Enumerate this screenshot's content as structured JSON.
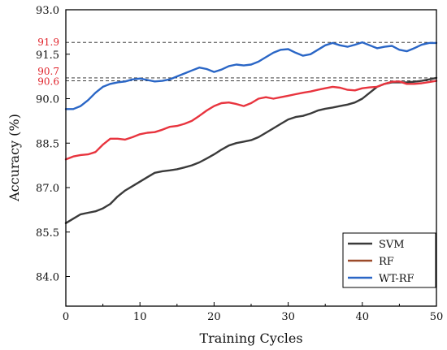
{
  "chart_data": {
    "type": "line",
    "xlabel": "Training Cycles",
    "ylabel": "Accuracy (%)",
    "xlim": [
      0,
      50
    ],
    "ylim": [
      83.0,
      93.0
    ],
    "x_ticks": [
      0,
      10,
      20,
      30,
      40,
      50
    ],
    "y_ticks": [
      "84.0",
      "85.5",
      "87.0",
      "88.5",
      "90.0",
      "91.5",
      "93.0"
    ],
    "reference_lines": [
      {
        "value": 91.9,
        "label": "91.9",
        "color": "#e0232b"
      },
      {
        "value": 90.7,
        "label": "90.7",
        "color": "#e0232b"
      },
      {
        "value": 90.6,
        "label": "90.6",
        "color": "#e0232b"
      }
    ],
    "legend_position": "bottom-right",
    "series": [
      {
        "name": "SVM",
        "color": "#3a3a3a",
        "x": [
          0,
          1,
          2,
          3,
          4,
          5,
          6,
          7,
          8,
          9,
          10,
          11,
          12,
          13,
          14,
          15,
          16,
          17,
          18,
          19,
          20,
          21,
          22,
          23,
          24,
          25,
          26,
          27,
          28,
          29,
          30,
          31,
          32,
          33,
          34,
          35,
          36,
          37,
          38,
          39,
          40,
          41,
          42,
          43,
          44,
          45,
          46,
          47,
          48,
          49,
          50
        ],
        "values": [
          85.8,
          85.95,
          86.1,
          86.15,
          86.2,
          86.3,
          86.45,
          86.7,
          86.9,
          87.05,
          87.2,
          87.35,
          87.5,
          87.55,
          87.58,
          87.62,
          87.68,
          87.75,
          87.85,
          87.98,
          88.12,
          88.28,
          88.42,
          88.5,
          88.55,
          88.6,
          88.7,
          88.85,
          89.0,
          89.15,
          89.3,
          89.38,
          89.42,
          89.5,
          89.6,
          89.66,
          89.7,
          89.75,
          89.8,
          89.87,
          90.0,
          90.2,
          90.4,
          90.5,
          90.55,
          90.55,
          90.55,
          90.57,
          90.6,
          90.65,
          90.7
        ]
      },
      {
        "name": "RF",
        "color": "#e8343e",
        "x": [
          0,
          1,
          2,
          3,
          4,
          5,
          6,
          7,
          8,
          9,
          10,
          11,
          12,
          13,
          14,
          15,
          16,
          17,
          18,
          19,
          20,
          21,
          22,
          23,
          24,
          25,
          26,
          27,
          28,
          29,
          30,
          31,
          32,
          33,
          34,
          35,
          36,
          37,
          38,
          39,
          40,
          41,
          42,
          43,
          44,
          45,
          46,
          47,
          48,
          49,
          50
        ],
        "values": [
          87.95,
          88.05,
          88.1,
          88.12,
          88.2,
          88.45,
          88.65,
          88.65,
          88.62,
          88.7,
          88.8,
          88.85,
          88.87,
          88.95,
          89.05,
          89.08,
          89.15,
          89.25,
          89.42,
          89.6,
          89.75,
          89.85,
          89.87,
          89.82,
          89.75,
          89.85,
          90.0,
          90.05,
          90.0,
          90.05,
          90.1,
          90.15,
          90.2,
          90.24,
          90.3,
          90.35,
          90.4,
          90.37,
          90.3,
          90.28,
          90.35,
          90.38,
          90.4,
          90.5,
          90.57,
          90.58,
          90.5,
          90.5,
          90.52,
          90.56,
          90.6
        ]
      },
      {
        "name": "WT-RF",
        "color": "#2a66c6",
        "x": [
          0,
          1,
          2,
          3,
          4,
          5,
          6,
          7,
          8,
          9,
          10,
          11,
          12,
          13,
          14,
          15,
          16,
          17,
          18,
          19,
          20,
          21,
          22,
          23,
          24,
          25,
          26,
          27,
          28,
          29,
          30,
          31,
          32,
          33,
          34,
          35,
          36,
          37,
          38,
          39,
          40,
          41,
          42,
          43,
          44,
          45,
          46,
          47,
          48,
          49,
          50
        ],
        "values": [
          89.65,
          89.65,
          89.75,
          89.95,
          90.2,
          90.4,
          90.5,
          90.55,
          90.58,
          90.65,
          90.68,
          90.63,
          90.58,
          90.6,
          90.65,
          90.75,
          90.85,
          90.95,
          91.05,
          91.0,
          90.9,
          90.98,
          91.1,
          91.15,
          91.12,
          91.15,
          91.25,
          91.4,
          91.55,
          91.65,
          91.67,
          91.55,
          91.45,
          91.5,
          91.65,
          91.8,
          91.88,
          91.8,
          91.75,
          91.82,
          91.9,
          91.8,
          91.7,
          91.75,
          91.78,
          91.65,
          91.6,
          91.7,
          91.82,
          91.88,
          91.88
        ]
      }
    ]
  }
}
